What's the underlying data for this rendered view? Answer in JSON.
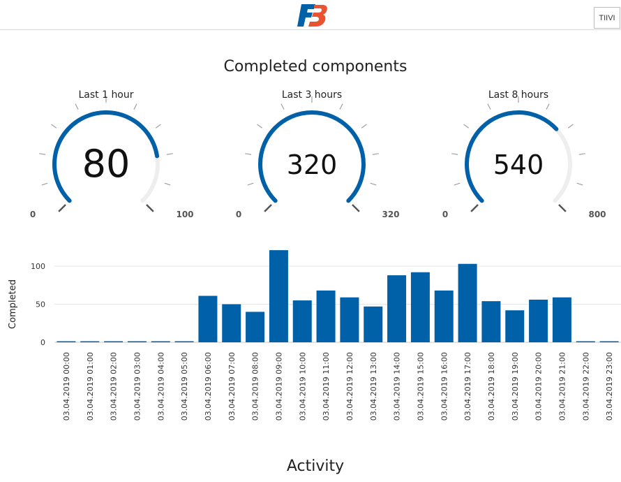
{
  "header": {
    "user_button_label": "TIIVI"
  },
  "gauges_section": {
    "title": "Completed components",
    "gauges": [
      {
        "label": "Last 1 hour",
        "value": 80,
        "min": 0,
        "max": 100,
        "value_text": "80",
        "min_text": "0",
        "max_text": "100"
      },
      {
        "label": "Last 3 hours",
        "value": 320,
        "min": 0,
        "max": 320,
        "value_text": "320",
        "min_text": "0",
        "max_text": "320"
      },
      {
        "label": "Last 8 hours",
        "value": 540,
        "min": 0,
        "max": 800,
        "value_text": "540",
        "min_text": "0",
        "max_text": "800"
      }
    ]
  },
  "colors": {
    "accent": "#0060a8",
    "track": "#eeeeee",
    "tick": "#a0a0a0",
    "grid": "#e6e6e6"
  },
  "chart_data": {
    "type": "bar",
    "title": "Activity",
    "xlabel": "",
    "ylabel": "Completed",
    "ylim": [
      0,
      120
    ],
    "yticks": [
      0,
      50,
      100
    ],
    "grid": true,
    "categories": [
      "03.04.2019 00:00",
      "03.04.2019 01:00",
      "03.04.2019 02:00",
      "03.04.2019 03:00",
      "03.04.2019 04:00",
      "03.04.2019 05:00",
      "03.04.2019 06:00",
      "03.04.2019 07:00",
      "03.04.2019 08:00",
      "03.04.2019 09:00",
      "03.04.2019 10:00",
      "03.04.2019 11:00",
      "03.04.2019 12:00",
      "03.04.2019 13:00",
      "03.04.2019 14:00",
      "03.04.2019 15:00",
      "03.04.2019 16:00",
      "03.04.2019 17:00",
      "03.04.2019 18:00",
      "03.04.2019 19:00",
      "03.04.2019 20:00",
      "03.04.2019 21:00",
      "03.04.2019 22:00",
      "03.04.2019 23:00"
    ],
    "values": [
      0,
      0,
      0,
      0,
      0,
      0,
      61,
      50,
      40,
      121,
      55,
      68,
      59,
      47,
      88,
      92,
      68,
      103,
      54,
      42,
      56,
      59,
      0,
      0
    ]
  }
}
